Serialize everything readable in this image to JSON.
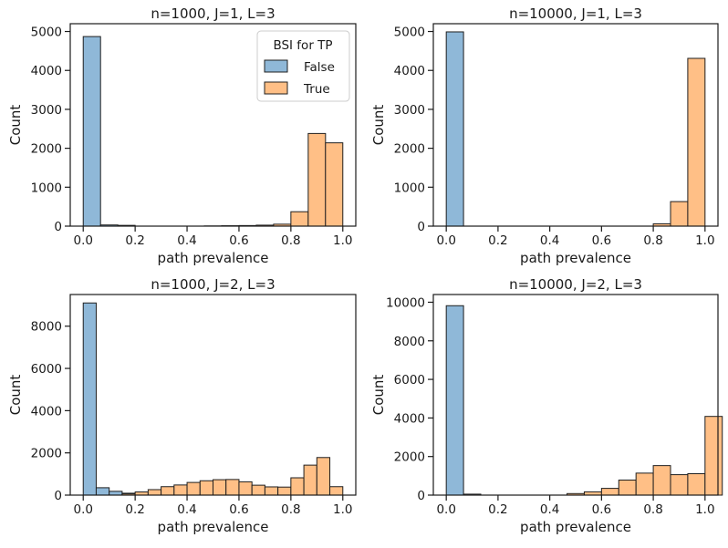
{
  "chart_data": [
    {
      "type": "histogram",
      "title": "n=1000, J=1, L=3",
      "xlabel": "path prevalence",
      "ylabel": "Count",
      "xlim": [
        -0.05,
        1.05
      ],
      "ylim": [
        0,
        5200
      ],
      "xticks": [
        0.0,
        0.2,
        0.4,
        0.6,
        0.8,
        1.0
      ],
      "xtick_labels": [
        "0.0",
        "0.2",
        "0.4",
        "0.6",
        "0.8",
        "1.0"
      ],
      "yticks": [
        0,
        1000,
        2000,
        3000,
        4000,
        5000
      ],
      "ytick_labels": [
        "0",
        "1000",
        "2000",
        "3000",
        "4000",
        "5000"
      ],
      "bin_width": 0.0667,
      "legend": {
        "title": "BSI for TP",
        "position": "top-right",
        "entries": [
          "False",
          "True"
        ]
      },
      "series": [
        {
          "name": "False",
          "color": "#8fb8d8",
          "bins": [
            [
              0.0,
              4870
            ],
            [
              0.0667,
              30
            ],
            [
              0.1333,
              20
            ]
          ]
        },
        {
          "name": "True",
          "color": "#ffbf86",
          "bins": [
            [
              0.4667,
              5
            ],
            [
              0.5333,
              10
            ],
            [
              0.6,
              15
            ],
            [
              0.6667,
              25
            ],
            [
              0.7333,
              50
            ],
            [
              0.8,
              370
            ],
            [
              0.8667,
              2380
            ],
            [
              0.9333,
              2140
            ]
          ]
        }
      ]
    },
    {
      "type": "histogram",
      "title": "n=10000, J=1, L=3",
      "xlabel": "path prevalence",
      "ylabel": "Count",
      "xlim": [
        -0.05,
        1.05
      ],
      "ylim": [
        0,
        5200
      ],
      "xticks": [
        0.0,
        0.2,
        0.4,
        0.6,
        0.8,
        1.0
      ],
      "xtick_labels": [
        "0.0",
        "0.2",
        "0.4",
        "0.6",
        "0.8",
        "1.0"
      ],
      "yticks": [
        0,
        1000,
        2000,
        3000,
        4000,
        5000
      ],
      "ytick_labels": [
        "0",
        "1000",
        "2000",
        "3000",
        "4000",
        "5000"
      ],
      "bin_width": 0.0667,
      "series": [
        {
          "name": "False",
          "color": "#8fb8d8",
          "bins": [
            [
              0.0,
              4990
            ]
          ]
        },
        {
          "name": "True",
          "color": "#ffbf86",
          "bins": [
            [
              0.8,
              60
            ],
            [
              0.8667,
              630
            ],
            [
              0.9333,
              4310
            ]
          ]
        }
      ]
    },
    {
      "type": "histogram",
      "title": "n=1000, J=2, L=3",
      "xlabel": "path prevalence",
      "ylabel": "Count",
      "xlim": [
        -0.05,
        1.05
      ],
      "ylim": [
        0,
        9500
      ],
      "xticks": [
        0.0,
        0.2,
        0.4,
        0.6,
        0.8,
        1.0
      ],
      "xtick_labels": [
        "0.0",
        "0.2",
        "0.4",
        "0.6",
        "0.8",
        "1.0"
      ],
      "yticks": [
        0,
        2000,
        4000,
        6000,
        8000
      ],
      "ytick_labels": [
        "0",
        "2000",
        "4000",
        "6000",
        "8000"
      ],
      "bin_width": 0.05,
      "series": [
        {
          "name": "False",
          "color": "#8fb8d8",
          "bins": [
            [
              0.0,
              9100
            ],
            [
              0.05,
              350
            ],
            [
              0.1,
              180
            ],
            [
              0.15,
              90
            ]
          ]
        },
        {
          "name": "True",
          "color": "#ffbf86",
          "bins": [
            [
              0.15,
              60
            ],
            [
              0.2,
              150
            ],
            [
              0.25,
              260
            ],
            [
              0.3,
              400
            ],
            [
              0.35,
              480
            ],
            [
              0.4,
              600
            ],
            [
              0.45,
              680
            ],
            [
              0.5,
              730
            ],
            [
              0.55,
              740
            ],
            [
              0.6,
              630
            ],
            [
              0.65,
              470
            ],
            [
              0.7,
              390
            ],
            [
              0.75,
              380
            ],
            [
              0.8,
              820
            ],
            [
              0.85,
              1420
            ],
            [
              0.9,
              1780
            ],
            [
              0.95,
              400
            ]
          ]
        }
      ]
    },
    {
      "type": "histogram",
      "title": "n=10000, J=2, L=3",
      "xlabel": "path prevalence",
      "ylabel": "Count",
      "xlim": [
        -0.05,
        1.05
      ],
      "ylim": [
        0,
        10400
      ],
      "xticks": [
        0.0,
        0.2,
        0.4,
        0.6,
        0.8,
        1.0
      ],
      "xtick_labels": [
        "0.0",
        "0.2",
        "0.4",
        "0.6",
        "0.8",
        "1.0"
      ],
      "yticks": [
        0,
        2000,
        4000,
        6000,
        8000,
        10000
      ],
      "ytick_labels": [
        "0",
        "2000",
        "4000",
        "6000",
        "8000",
        "10000"
      ],
      "bin_width": 0.0667,
      "series": [
        {
          "name": "False",
          "color": "#8fb8d8",
          "bins": [
            [
              0.0,
              9820
            ],
            [
              0.0667,
              50
            ]
          ]
        },
        {
          "name": "True",
          "color": "#ffbf86",
          "bins": [
            [
              0.4667,
              80
            ],
            [
              0.5333,
              170
            ],
            [
              0.6,
              350
            ],
            [
              0.6667,
              780
            ],
            [
              0.7333,
              1140
            ],
            [
              0.8,
              1530
            ],
            [
              0.8667,
              1060
            ],
            [
              0.9333,
              1110
            ],
            [
              1.0,
              4080
            ]
          ]
        }
      ]
    }
  ]
}
